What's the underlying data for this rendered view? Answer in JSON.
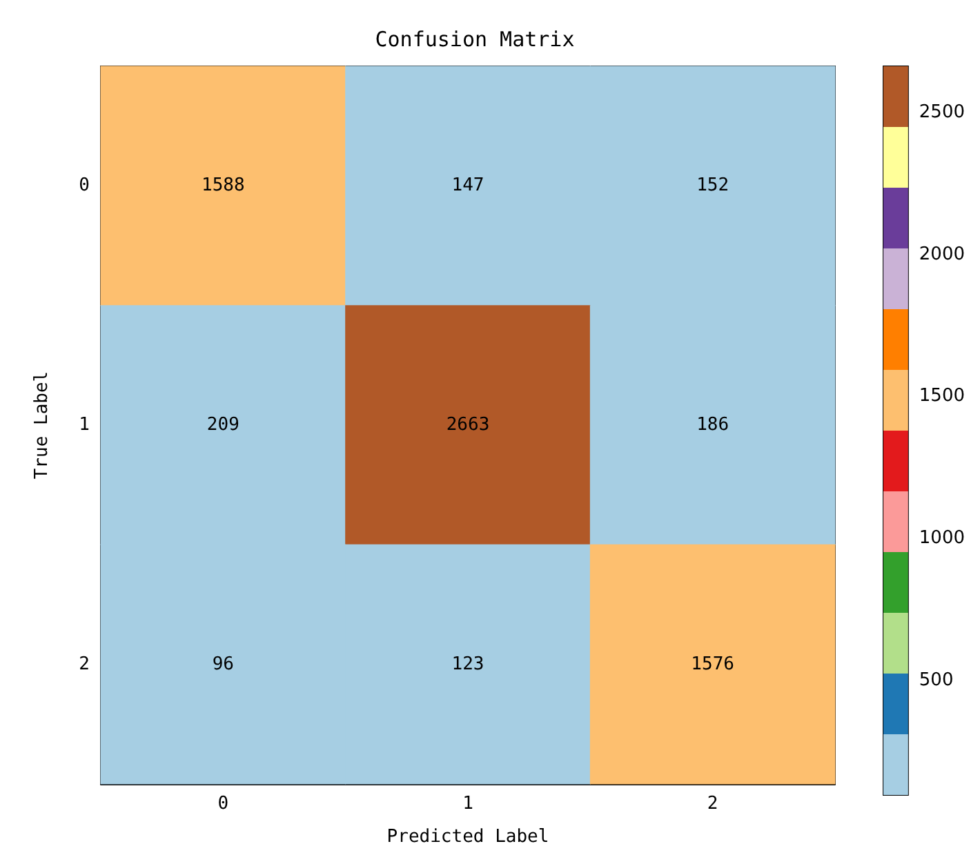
{
  "chart_data": {
    "type": "heatmap",
    "title": "Confusion Matrix",
    "xlabel": "Predicted Label",
    "ylabel": "True Label",
    "categories": [
      "0",
      "1",
      "2"
    ],
    "y_categories": [
      "0",
      "1",
      "2"
    ],
    "cells": [
      [
        1588,
        147,
        152
      ],
      [
        209,
        2663,
        186
      ],
      [
        96,
        123,
        1576
      ]
    ],
    "data_labels": true,
    "clim": [
      96,
      2663
    ],
    "cticks": [
      500,
      1000,
      1500,
      2000,
      2500
    ]
  }
}
